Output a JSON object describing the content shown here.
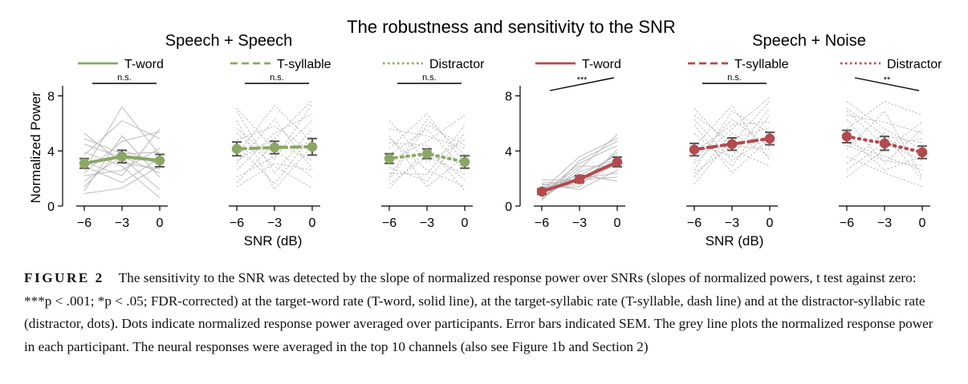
{
  "figure": {
    "main_title": "The robustness and sensitivity to the SNR",
    "colors": {
      "green": "#8aa865",
      "red": "#b34a4e",
      "grey": "#b5b5b5",
      "sem": "#555555"
    }
  },
  "chart_data": [
    {
      "type": "line",
      "group_title": "Speech + Speech",
      "ylabel": "Normalized Power",
      "xlabel": "SNR (dB)",
      "x_ticks": [
        "−6",
        "−3",
        "0"
      ],
      "y_ticks": [
        "0",
        "4",
        "8"
      ],
      "ylim": [
        0,
        8.5
      ],
      "panels": [
        {
          "legend": "T-word",
          "line_style": "solid",
          "color": "green",
          "x": [
            -6,
            -3,
            0
          ],
          "mean": [
            3.1,
            3.6,
            3.3
          ],
          "sem": [
            0.35,
            0.45,
            0.45
          ],
          "significance": {
            "label": "n.s.",
            "style": "flat"
          },
          "participants": [
            [
              1.8,
              3.6,
              2.4
            ],
            [
              2.6,
              7.2,
              3.7
            ],
            [
              3.2,
              2.2,
              5.6
            ],
            [
              4.5,
              3.5,
              1.2
            ],
            [
              2.2,
              2.6,
              4.2
            ],
            [
              1.4,
              4.1,
              3.0
            ],
            [
              5.3,
              3.1,
              2.7
            ],
            [
              3.7,
              6.2,
              4.9
            ],
            [
              2.9,
              1.7,
              3.5
            ],
            [
              1.1,
              5.1,
              2.1
            ],
            [
              3.9,
              2.9,
              0.6
            ],
            [
              2.4,
              4.7,
              5.4
            ],
            [
              4.9,
              3.8,
              3.9
            ],
            [
              0.9,
              1.3,
              2.9
            ]
          ]
        },
        {
          "legend": "T-syllable",
          "line_style": "dash",
          "color": "green",
          "x": [
            -6,
            -3,
            0
          ],
          "mean": [
            4.15,
            4.25,
            4.3
          ],
          "sem": [
            0.5,
            0.45,
            0.6
          ],
          "significance": {
            "label": "n.s.",
            "style": "flat"
          },
          "participants": [
            [
              6.9,
              2.4,
              5.6
            ],
            [
              3.1,
              6.3,
              2.7
            ],
            [
              5.6,
              3.4,
              7.4
            ],
            [
              1.7,
              4.6,
              3.3
            ],
            [
              4.4,
              1.6,
              5.1
            ],
            [
              2.6,
              5.3,
              6.7
            ],
            [
              7.1,
              4.1,
              2.1
            ],
            [
              3.7,
              7.3,
              4.6
            ],
            [
              5.3,
              2.9,
              1.3
            ],
            [
              2.1,
              3.6,
              6.2
            ],
            [
              4.8,
              5.8,
              3.9
            ],
            [
              6.2,
              1.2,
              4.4
            ],
            [
              3.3,
              4.9,
              7.7
            ],
            [
              1.4,
              3.1,
              2.6
            ]
          ]
        },
        {
          "legend": "Distractor",
          "line_style": "dots",
          "color": "green",
          "x": [
            -6,
            -3,
            0
          ],
          "mean": [
            3.45,
            3.8,
            3.2
          ],
          "sem": [
            0.35,
            0.35,
            0.45
          ],
          "significance": {
            "label": "n.s.",
            "style": "flat"
          },
          "participants": [
            [
              2.1,
              6.3,
              3.7
            ],
            [
              4.9,
              2.6,
              1.4
            ],
            [
              3.3,
              4.7,
              6.6
            ],
            [
              1.6,
              3.6,
              2.3
            ],
            [
              5.6,
              5.1,
              4.2
            ],
            [
              2.8,
              1.8,
              5.3
            ],
            [
              4.2,
              6.7,
              3.1
            ],
            [
              1.3,
              4.1,
              1.9
            ],
            [
              6.2,
              3.2,
              4.8
            ],
            [
              3.7,
              5.6,
              2.6
            ],
            [
              2.4,
              2.3,
              5.9
            ],
            [
              4.6,
              4.4,
              1.1
            ],
            [
              5.1,
              1.4,
              3.6
            ],
            [
              1.9,
              5.9,
              4.4
            ]
          ]
        }
      ]
    },
    {
      "type": "line",
      "group_title": "Speech + Noise",
      "ylabel": "",
      "xlabel": "SNR (dB)",
      "x_ticks": [
        "−6",
        "−3",
        "0"
      ],
      "y_ticks": [
        "0",
        "4",
        "8"
      ],
      "ylim": [
        0,
        8.5
      ],
      "panels": [
        {
          "legend": "T-word",
          "line_style": "solid",
          "color": "red",
          "x": [
            -6,
            -3,
            0
          ],
          "mean": [
            1.05,
            1.95,
            3.2
          ],
          "sem": [
            0.2,
            0.25,
            0.35
          ],
          "significance": {
            "label": "***",
            "style": "rising"
          },
          "participants": [
            [
              0.6,
              2.7,
              5.2
            ],
            [
              1.3,
              1.6,
              3.1
            ],
            [
              0.9,
              3.1,
              4.4
            ],
            [
              1.6,
              1.2,
              2.6
            ],
            [
              0.7,
              2.2,
              3.7
            ],
            [
              1.1,
              3.6,
              4.9
            ],
            [
              1.9,
              1.9,
              2.1
            ],
            [
              0.5,
              2.5,
              3.4
            ],
            [
              1.4,
              1.4,
              4.1
            ],
            [
              0.8,
              2.9,
              2.9
            ],
            [
              1.7,
              1.7,
              3.9
            ],
            [
              1.2,
              2.3,
              1.8
            ],
            [
              0.4,
              3.3,
              4.7
            ],
            [
              1.5,
              2.0,
              2.4
            ]
          ]
        },
        {
          "legend": "T-syllable",
          "line_style": "dash",
          "color": "red",
          "x": [
            -6,
            -3,
            0
          ],
          "mean": [
            4.1,
            4.5,
            4.9
          ],
          "sem": [
            0.45,
            0.45,
            0.45
          ],
          "significance": {
            "label": "n.s.",
            "style": "flat"
          },
          "participants": [
            [
              6.6,
              4.6,
              7.6
            ],
            [
              3.3,
              6.3,
              4.3
            ],
            [
              5.3,
              2.9,
              6.6
            ],
            [
              2.1,
              5.3,
              3.6
            ],
            [
              4.6,
              3.6,
              7.1
            ],
            [
              2.6,
              6.9,
              5.3
            ],
            [
              7.1,
              4.1,
              2.9
            ],
            [
              3.9,
              5.9,
              6.1
            ],
            [
              5.9,
              2.4,
              4.9
            ],
            [
              1.6,
              4.9,
              5.7
            ],
            [
              4.3,
              7.3,
              3.3
            ],
            [
              6.3,
              3.3,
              5.1
            ],
            [
              3.1,
              5.6,
              7.9
            ],
            [
              2.4,
              4.4,
              4.1
            ]
          ]
        },
        {
          "legend": "Distractor",
          "line_style": "dots",
          "color": "red",
          "x": [
            -6,
            -3,
            0
          ],
          "mean": [
            5.05,
            4.55,
            3.9
          ],
          "sem": [
            0.45,
            0.5,
            0.45
          ],
          "significance": {
            "label": "**",
            "style": "falling"
          },
          "participants": [
            [
              7.6,
              5.6,
              4.1
            ],
            [
              4.1,
              6.9,
              2.1
            ],
            [
              6.3,
              3.1,
              5.6
            ],
            [
              2.6,
              4.6,
              3.3
            ],
            [
              5.6,
              7.6,
              6.6
            ],
            [
              3.6,
              2.4,
              1.4
            ],
            [
              7.1,
              5.1,
              4.6
            ],
            [
              4.6,
              3.6,
              2.6
            ],
            [
              6.6,
              6.1,
              5.3
            ],
            [
              2.1,
              4.1,
              6.1
            ],
            [
              5.1,
              2.6,
              3.6
            ],
            [
              3.1,
              5.3,
              1.9
            ],
            [
              6.9,
              4.4,
              4.9
            ],
            [
              4.4,
              3.3,
              2.9
            ]
          ]
        }
      ]
    }
  ],
  "caption": {
    "label": "FIGURE 2",
    "text": "The sensitivity to the SNR was detected by the slope of normalized response power over SNRs (slopes of normalized powers, t test against zero: ***p < .001; *p < .05; FDR-corrected) at the target-word rate (T-word, solid line), at the target-syllabic rate (T-syllable, dash line) and at the distractor-syllabic rate (distractor, dots). Dots indicate normalized response power averaged over participants. Error bars indicated SEM. The grey line plots the normalized response power in each participant. The neural responses were averaged in the top 10 channels (also see Figure 1b and Section 2)"
  }
}
